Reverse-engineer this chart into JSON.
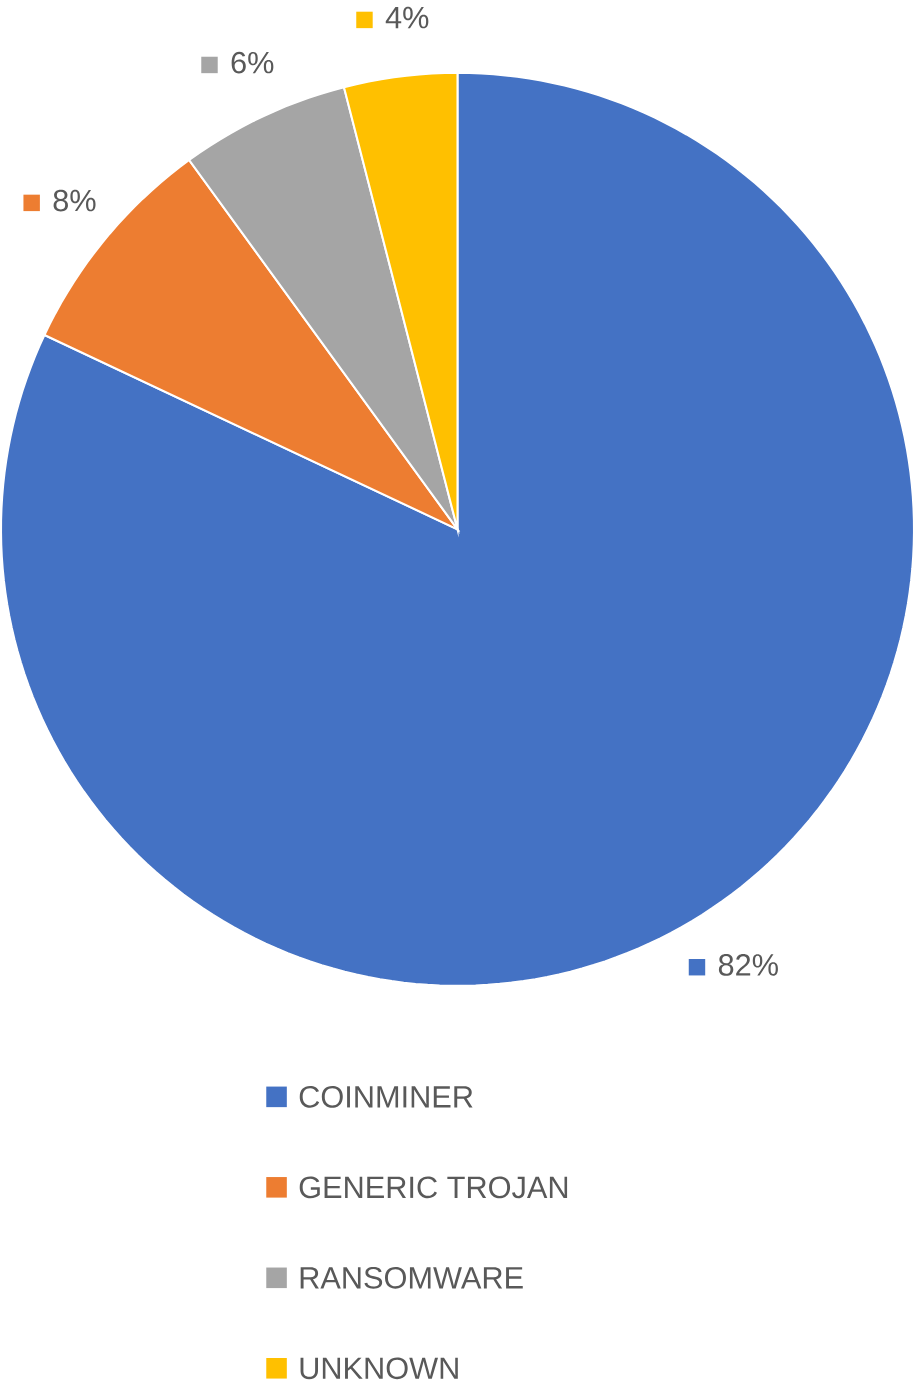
{
  "chart_data": {
    "type": "pie",
    "categories": [
      "COINMINER",
      "GENERIC TROJAN",
      "RANSOMWARE",
      "UNKNOWN"
    ],
    "values": [
      82,
      8,
      6,
      4
    ],
    "value_labels": [
      "82%",
      "8%",
      "6%",
      "4%"
    ],
    "colors": [
      "#4472c4",
      "#ed7d31",
      "#a5a5a5",
      "#ffc000"
    ],
    "legend": "bottom"
  }
}
